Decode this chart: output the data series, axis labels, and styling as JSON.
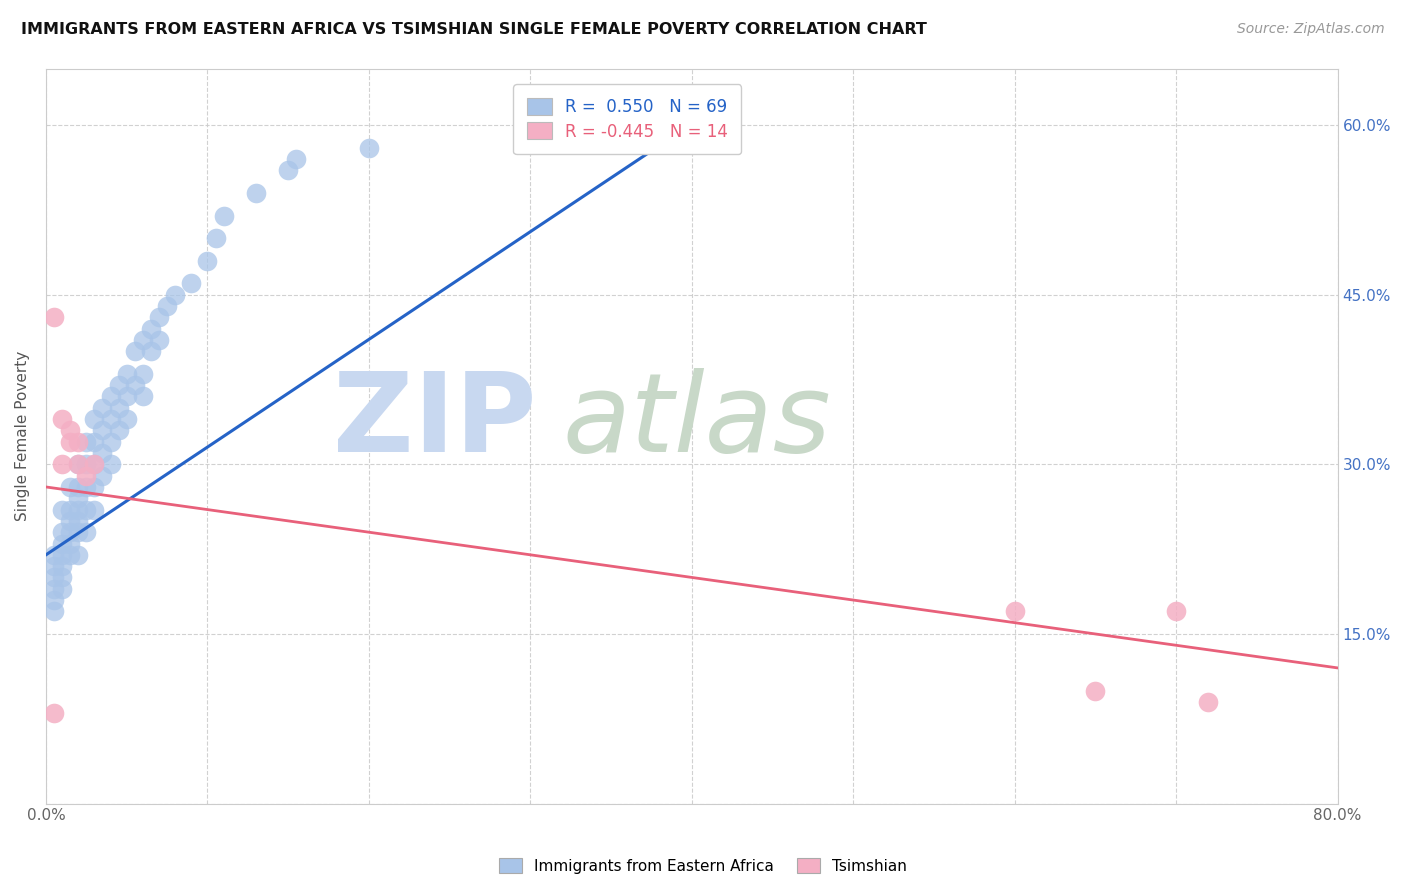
{
  "title": "IMMIGRANTS FROM EASTERN AFRICA VS TSIMSHIAN SINGLE FEMALE POVERTY CORRELATION CHART",
  "source": "Source: ZipAtlas.com",
  "ylabel": "Single Female Poverty",
  "xlim": [
    0.0,
    0.8
  ],
  "ylim": [
    0.0,
    0.65
  ],
  "blue_R": 0.55,
  "blue_N": 69,
  "pink_R": -0.445,
  "pink_N": 14,
  "blue_color": "#a8c4e8",
  "pink_color": "#f4afc4",
  "blue_line_color": "#2563c7",
  "pink_line_color": "#e8607a",
  "blue_scatter_x": [
    0.005,
    0.005,
    0.005,
    0.005,
    0.005,
    0.005,
    0.01,
    0.01,
    0.01,
    0.01,
    0.01,
    0.01,
    0.01,
    0.015,
    0.015,
    0.015,
    0.015,
    0.015,
    0.015,
    0.02,
    0.02,
    0.02,
    0.02,
    0.02,
    0.02,
    0.02,
    0.025,
    0.025,
    0.025,
    0.025,
    0.025,
    0.03,
    0.03,
    0.03,
    0.03,
    0.03,
    0.035,
    0.035,
    0.035,
    0.035,
    0.04,
    0.04,
    0.04,
    0.04,
    0.045,
    0.045,
    0.045,
    0.05,
    0.05,
    0.05,
    0.055,
    0.055,
    0.06,
    0.06,
    0.06,
    0.065,
    0.065,
    0.07,
    0.07,
    0.075,
    0.08,
    0.09,
    0.1,
    0.105,
    0.11,
    0.13,
    0.15,
    0.155,
    0.2
  ],
  "blue_scatter_y": [
    0.22,
    0.21,
    0.2,
    0.19,
    0.18,
    0.17,
    0.26,
    0.24,
    0.23,
    0.22,
    0.21,
    0.2,
    0.19,
    0.28,
    0.26,
    0.25,
    0.24,
    0.23,
    0.22,
    0.3,
    0.28,
    0.27,
    0.26,
    0.25,
    0.24,
    0.22,
    0.32,
    0.3,
    0.28,
    0.26,
    0.24,
    0.34,
    0.32,
    0.3,
    0.28,
    0.26,
    0.35,
    0.33,
    0.31,
    0.29,
    0.36,
    0.34,
    0.32,
    0.3,
    0.37,
    0.35,
    0.33,
    0.38,
    0.36,
    0.34,
    0.4,
    0.37,
    0.41,
    0.38,
    0.36,
    0.42,
    0.4,
    0.43,
    0.41,
    0.44,
    0.45,
    0.46,
    0.48,
    0.5,
    0.52,
    0.54,
    0.56,
    0.57,
    0.58
  ],
  "pink_scatter_x": [
    0.005,
    0.005,
    0.01,
    0.01,
    0.015,
    0.015,
    0.02,
    0.02,
    0.025,
    0.03,
    0.6,
    0.65,
    0.7,
    0.72
  ],
  "pink_scatter_y": [
    0.43,
    0.08,
    0.34,
    0.3,
    0.33,
    0.32,
    0.32,
    0.3,
    0.29,
    0.3,
    0.17,
    0.1,
    0.17,
    0.09
  ],
  "blue_trend_x": [
    0.0,
    0.42
  ],
  "blue_trend_y": [
    0.22,
    0.62
  ],
  "pink_trend_x": [
    0.0,
    0.8
  ],
  "pink_trend_y": [
    0.28,
    0.12
  ]
}
